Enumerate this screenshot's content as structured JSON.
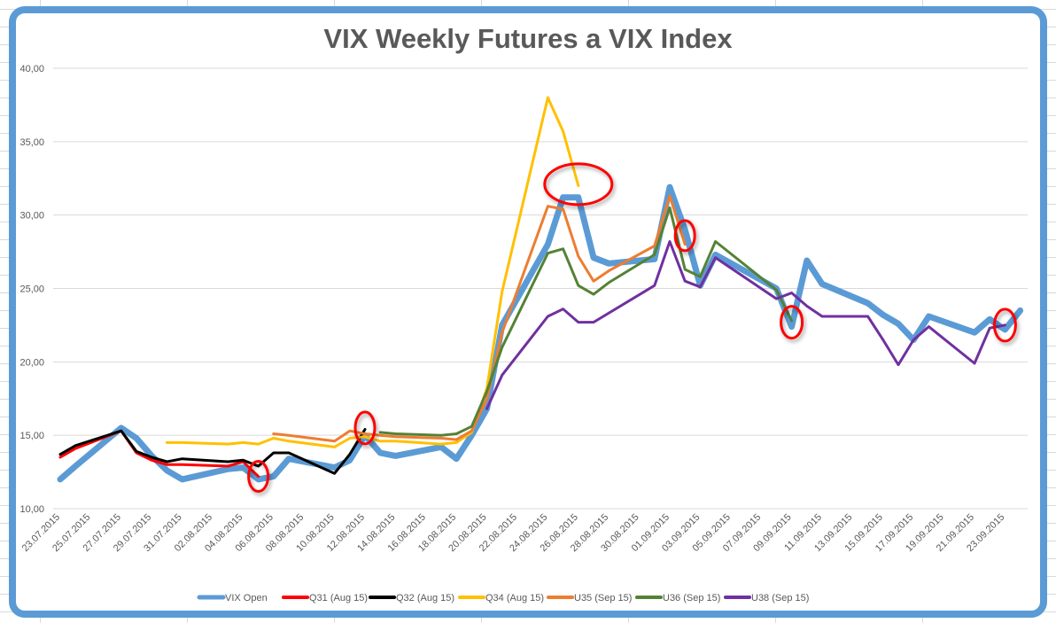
{
  "chart_data": {
    "type": "line",
    "title": "VIX Weekly Futures a VIX Index",
    "xlabel": "",
    "ylabel": "",
    "ylim": [
      10,
      40
    ],
    "yticks": [
      "10,00",
      "15,00",
      "20,00",
      "25,00",
      "30,00",
      "35,00",
      "40,00"
    ],
    "xrange": [
      "2015-07-23",
      "2015-09-24"
    ],
    "xticks": [
      "23.07.2015",
      "25.07.2015",
      "27.07.2015",
      "29.07.2015",
      "31.07.2015",
      "02.08.2015",
      "04.08.2015",
      "06.08.2015",
      "08.08.2015",
      "10.08.2015",
      "12.08.2015",
      "14.08.2015",
      "16.08.2015",
      "18.08.2015",
      "20.08.2015",
      "22.08.2015",
      "24.08.2015",
      "26.08.2015",
      "28.08.2015",
      "30.08.2015",
      "01.09.2015",
      "03.09.2015",
      "05.09.2015",
      "07.09.2015",
      "09.09.2015",
      "11.09.2015",
      "13.09.2015",
      "15.09.2015",
      "17.09.2015",
      "19.09.2015",
      "21.09.2015",
      "23.09.2015"
    ],
    "grid": true,
    "legend_position": "bottom",
    "series": [
      {
        "name": "VIX Open",
        "color": "#5b9bd5",
        "points": [
          [
            "2015-07-23",
            12.0
          ],
          [
            "2015-07-24",
            12.9
          ],
          [
            "2015-07-27",
            15.5
          ],
          [
            "2015-07-28",
            14.8
          ],
          [
            "2015-07-29",
            13.6
          ],
          [
            "2015-07-30",
            12.6
          ],
          [
            "2015-07-31",
            12.0
          ],
          [
            "2015-08-03",
            12.7
          ],
          [
            "2015-08-04",
            12.8
          ],
          [
            "2015-08-05",
            12.0
          ],
          [
            "2015-08-06",
            12.2
          ],
          [
            "2015-08-07",
            13.4
          ],
          [
            "2015-08-10",
            12.8
          ],
          [
            "2015-08-11",
            13.3
          ],
          [
            "2015-08-12",
            15.0
          ],
          [
            "2015-08-13",
            13.8
          ],
          [
            "2015-08-14",
            13.6
          ],
          [
            "2015-08-17",
            14.2
          ],
          [
            "2015-08-18",
            13.4
          ],
          [
            "2015-08-19",
            15.0
          ],
          [
            "2015-08-20",
            16.8
          ],
          [
            "2015-08-21",
            22.5
          ],
          [
            "2015-08-24",
            28.0
          ],
          [
            "2015-08-25",
            31.2
          ],
          [
            "2015-08-26",
            31.2
          ],
          [
            "2015-08-27",
            27.1
          ],
          [
            "2015-08-28",
            26.7
          ],
          [
            "2015-08-31",
            27.0
          ],
          [
            "2015-09-01",
            31.9
          ],
          [
            "2015-09-02",
            29.0
          ],
          [
            "2015-09-03",
            25.2
          ],
          [
            "2015-09-04",
            27.3
          ],
          [
            "2015-09-08",
            25.0
          ],
          [
            "2015-09-09",
            22.4
          ],
          [
            "2015-09-10",
            26.9
          ],
          [
            "2015-09-11",
            25.3
          ],
          [
            "2015-09-14",
            24.0
          ],
          [
            "2015-09-15",
            23.2
          ],
          [
            "2015-09-16",
            22.6
          ],
          [
            "2015-09-17",
            21.5
          ],
          [
            "2015-09-18",
            23.1
          ],
          [
            "2015-09-21",
            22.0
          ],
          [
            "2015-09-22",
            22.9
          ],
          [
            "2015-09-23",
            22.2
          ],
          [
            "2015-09-24",
            23.5
          ]
        ]
      },
      {
        "name": "Q31 (Aug 15)",
        "color": "#ff0000",
        "points": [
          [
            "2015-07-23",
            13.5
          ],
          [
            "2015-07-24",
            14.1
          ],
          [
            "2015-07-27",
            15.3
          ],
          [
            "2015-07-28",
            13.8
          ],
          [
            "2015-07-29",
            13.3
          ],
          [
            "2015-07-30",
            13.0
          ],
          [
            "2015-07-31",
            13.0
          ],
          [
            "2015-08-03",
            12.9
          ],
          [
            "2015-08-04",
            13.2
          ],
          [
            "2015-08-05",
            12.2
          ]
        ]
      },
      {
        "name": "Q32 (Aug 15)",
        "color": "#000000",
        "points": [
          [
            "2015-07-23",
            13.7
          ],
          [
            "2015-07-24",
            14.3
          ],
          [
            "2015-07-27",
            15.3
          ],
          [
            "2015-07-28",
            13.9
          ],
          [
            "2015-07-29",
            13.5
          ],
          [
            "2015-07-30",
            13.2
          ],
          [
            "2015-07-31",
            13.4
          ],
          [
            "2015-08-03",
            13.2
          ],
          [
            "2015-08-04",
            13.3
          ],
          [
            "2015-08-05",
            12.9
          ],
          [
            "2015-08-06",
            13.8
          ],
          [
            "2015-08-07",
            13.8
          ],
          [
            "2015-08-10",
            12.4
          ],
          [
            "2015-08-11",
            13.7
          ],
          [
            "2015-08-12",
            15.4
          ]
        ]
      },
      {
        "name": "Q34 (Aug 15)",
        "color": "#ffc000",
        "points": [
          [
            "2015-07-30",
            14.5
          ],
          [
            "2015-07-31",
            14.5
          ],
          [
            "2015-08-03",
            14.4
          ],
          [
            "2015-08-04",
            14.5
          ],
          [
            "2015-08-05",
            14.4
          ],
          [
            "2015-08-06",
            14.8
          ],
          [
            "2015-08-07",
            14.6
          ],
          [
            "2015-08-10",
            14.2
          ],
          [
            "2015-08-11",
            14.8
          ],
          [
            "2015-08-12",
            14.9
          ],
          [
            "2015-08-13",
            14.6
          ],
          [
            "2015-08-14",
            14.6
          ],
          [
            "2015-08-17",
            14.4
          ],
          [
            "2015-08-18",
            14.5
          ],
          [
            "2015-08-19",
            15.2
          ],
          [
            "2015-08-20",
            18.2
          ],
          [
            "2015-08-21",
            24.8
          ],
          [
            "2015-08-24",
            38.0
          ],
          [
            "2015-08-25",
            35.7
          ],
          [
            "2015-08-26",
            32.0
          ]
        ]
      },
      {
        "name": "U35 (Sep 15)",
        "color": "#ed7d31",
        "points": [
          [
            "2015-08-06",
            15.1
          ],
          [
            "2015-08-07",
            15.0
          ],
          [
            "2015-08-10",
            14.6
          ],
          [
            "2015-08-11",
            15.3
          ],
          [
            "2015-08-12",
            15.1
          ],
          [
            "2015-08-13",
            15.0
          ],
          [
            "2015-08-14",
            14.9
          ],
          [
            "2015-08-17",
            14.8
          ],
          [
            "2015-08-18",
            14.7
          ],
          [
            "2015-08-19",
            15.3
          ],
          [
            "2015-08-20",
            17.5
          ],
          [
            "2015-08-21",
            22.0
          ],
          [
            "2015-08-24",
            30.6
          ],
          [
            "2015-08-25",
            30.4
          ],
          [
            "2015-08-26",
            27.2
          ],
          [
            "2015-08-27",
            25.5
          ],
          [
            "2015-08-28",
            26.2
          ],
          [
            "2015-08-31",
            27.9
          ],
          [
            "2015-09-01",
            31.3
          ],
          [
            "2015-09-02",
            28.0
          ]
        ]
      },
      {
        "name": "U36 (Sep 15)",
        "color": "#548235",
        "points": [
          [
            "2015-08-13",
            15.2
          ],
          [
            "2015-08-14",
            15.1
          ],
          [
            "2015-08-17",
            15.0
          ],
          [
            "2015-08-18",
            15.1
          ],
          [
            "2015-08-19",
            15.6
          ],
          [
            "2015-08-20",
            18.0
          ],
          [
            "2015-08-21",
            21.0
          ],
          [
            "2015-08-24",
            27.4
          ],
          [
            "2015-08-25",
            27.7
          ],
          [
            "2015-08-26",
            25.2
          ],
          [
            "2015-08-27",
            24.6
          ],
          [
            "2015-08-28",
            25.4
          ],
          [
            "2015-08-31",
            27.3
          ],
          [
            "2015-09-01",
            30.5
          ],
          [
            "2015-09-02",
            26.3
          ],
          [
            "2015-09-03",
            25.8
          ],
          [
            "2015-09-04",
            28.2
          ],
          [
            "2015-09-08",
            24.9
          ],
          [
            "2015-09-09",
            22.8
          ]
        ]
      },
      {
        "name": "U38 (Sep 15)",
        "color": "#7030a0",
        "points": [
          [
            "2015-08-20",
            16.8
          ],
          [
            "2015-08-21",
            19.1
          ],
          [
            "2015-08-24",
            23.1
          ],
          [
            "2015-08-25",
            23.6
          ],
          [
            "2015-08-26",
            22.7
          ],
          [
            "2015-08-27",
            22.7
          ],
          [
            "2015-08-31",
            25.2
          ],
          [
            "2015-09-01",
            28.2
          ],
          [
            "2015-09-02",
            25.5
          ],
          [
            "2015-09-03",
            25.1
          ],
          [
            "2015-09-04",
            27.1
          ],
          [
            "2015-09-08",
            24.3
          ],
          [
            "2015-09-09",
            24.7
          ],
          [
            "2015-09-10",
            23.8
          ],
          [
            "2015-09-11",
            23.1
          ],
          [
            "2015-09-14",
            23.1
          ],
          [
            "2015-09-15",
            21.5
          ],
          [
            "2015-09-16",
            19.8
          ],
          [
            "2015-09-17",
            21.5
          ],
          [
            "2015-09-18",
            22.4
          ],
          [
            "2015-09-21",
            19.9
          ],
          [
            "2015-09-22",
            22.3
          ],
          [
            "2015-09-23",
            22.5
          ]
        ]
      }
    ],
    "annotations": [
      {
        "type": "circle",
        "color": "#ff0000",
        "date": "2015-08-05",
        "value": 12.2
      },
      {
        "type": "circle",
        "color": "#ff0000",
        "date": "2015-08-12",
        "value": 15.5
      },
      {
        "type": "circle",
        "color": "#ff0000",
        "date": "2015-08-26",
        "value": 32.1
      },
      {
        "type": "circle",
        "color": "#ff0000",
        "date": "2015-09-02",
        "value": 28.6
      },
      {
        "type": "circle",
        "color": "#ff0000",
        "date": "2015-09-09",
        "value": 22.7
      },
      {
        "type": "circle",
        "color": "#ff0000",
        "date": "2015-09-23",
        "value": 22.5
      }
    ]
  }
}
